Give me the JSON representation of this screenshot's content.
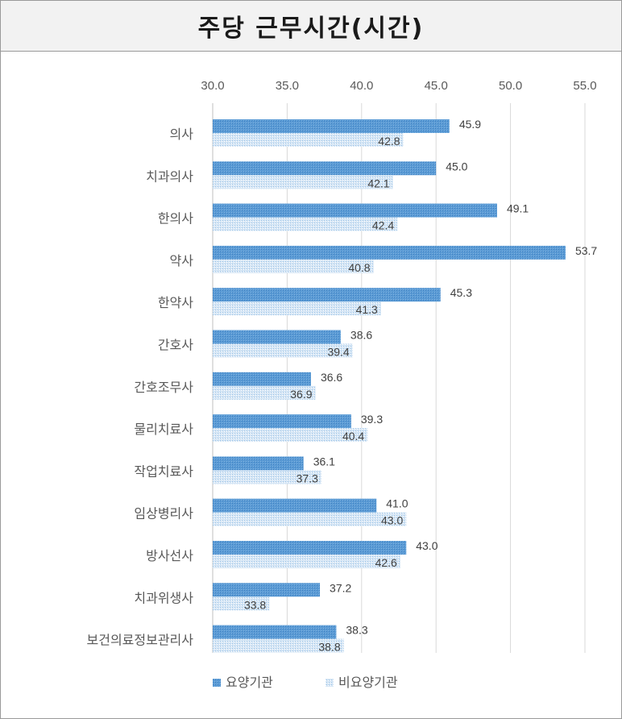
{
  "chart_data": {
    "type": "bar",
    "orientation": "horizontal",
    "title": "주당 근무시간(시간)",
    "categories": [
      "의사",
      "치과의사",
      "한의사",
      "약사",
      "한약사",
      "간호사",
      "간호조무사",
      "물리치료사",
      "작업치료사",
      "임상병리사",
      "방사선사",
      "치과위생사",
      "보건의료정보관리사"
    ],
    "series": [
      {
        "name": "요양기관",
        "values": [
          45.9,
          45.0,
          49.1,
          53.7,
          45.3,
          38.6,
          36.6,
          39.3,
          36.1,
          41.0,
          43.0,
          37.2,
          38.3
        ]
      },
      {
        "name": "비요양기관",
        "values": [
          42.8,
          42.1,
          42.4,
          40.8,
          41.3,
          39.4,
          36.9,
          40.4,
          37.3,
          43.0,
          42.6,
          33.8,
          38.8
        ]
      }
    ],
    "xlim": [
      30,
      55
    ],
    "xticks": [
      "30.0",
      "35.0",
      "40.0",
      "45.0",
      "50.0",
      "55.0"
    ],
    "axis_position": "top",
    "grid": true,
    "legend": "bottom",
    "colors": [
      "#5b9bd5",
      "#bdd7ee"
    ]
  }
}
